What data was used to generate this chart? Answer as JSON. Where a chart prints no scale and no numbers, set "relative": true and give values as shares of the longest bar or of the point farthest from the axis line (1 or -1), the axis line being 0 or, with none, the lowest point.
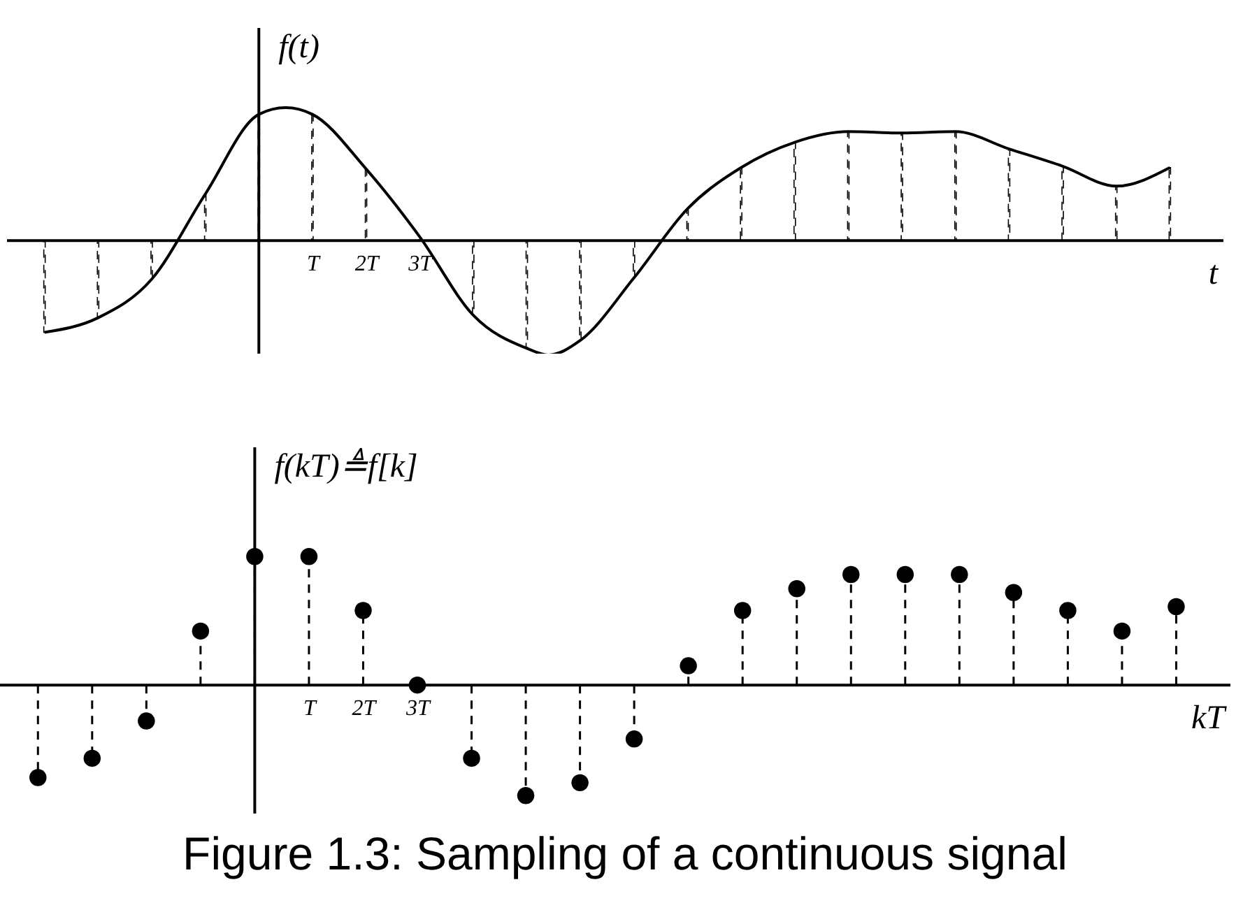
{
  "chart_data": [
    {
      "type": "line",
      "xlabel": "t",
      "ylabel": "f(t)",
      "relative": true,
      "xlim": [
        -4.7,
        18
      ],
      "xticks": [
        {
          "value": 1,
          "label": "T"
        },
        {
          "value": 2,
          "label": "2T"
        },
        {
          "value": 3,
          "label": "3T"
        }
      ],
      "series": [
        {
          "color": "#000000",
          "line_style": "solid",
          "x": [
            -4,
            -3,
            -2,
            -1,
            0,
            0.5,
            1,
            2,
            3,
            4,
            5,
            5.4,
            6,
            7,
            8,
            9,
            10,
            11,
            12,
            13,
            14,
            15,
            16,
            17
          ],
          "values": [
            -0.69,
            -0.58,
            -0.29,
            0.35,
            0.95,
            1,
            0.95,
            0.54,
            0.03,
            -0.56,
            -0.81,
            -0.86,
            -0.75,
            -0.28,
            0.24,
            0.55,
            0.74,
            0.82,
            0.81,
            0.82,
            0.69,
            0.56,
            0.41,
            0.55
          ]
        },
        {
          "type": "bar",
          "color": "#000000",
          "line_style": "dashed",
          "x": [
            -4,
            -3,
            -2,
            -1,
            0,
            1,
            2,
            3,
            4,
            5,
            6,
            7,
            8,
            9,
            10,
            11,
            12,
            13,
            14,
            15,
            16,
            17
          ],
          "values": [
            -0.69,
            -0.58,
            -0.29,
            0.35,
            0.95,
            0.95,
            0.54,
            0.03,
            -0.56,
            -0.81,
            -0.75,
            -0.28,
            0.24,
            0.55,
            0.74,
            0.82,
            0.81,
            0.82,
            0.69,
            0.56,
            0.41,
            0.55
          ]
        }
      ]
    },
    {
      "type": "lollipop",
      "xlabel": "kT",
      "ylabel": "f(kT)≜f[k]",
      "relative": true,
      "xlim": [
        -4.7,
        18
      ],
      "xticks": [
        {
          "value": 1,
          "label": "T"
        },
        {
          "value": 2,
          "label": "2T"
        },
        {
          "value": 3,
          "label": "3T"
        }
      ],
      "marker": "circle",
      "annotations": [
        "Figure 1.3: Sampling of a continuous signal"
      ],
      "series": [
        {
          "color": "#000000",
          "line_style": "dashed",
          "x": [
            -4,
            -3,
            -2,
            -1,
            0,
            1,
            2,
            3,
            4,
            5,
            6,
            7,
            8,
            9,
            10,
            11,
            12,
            13,
            14,
            15,
            16,
            17
          ],
          "values": [
            -0.72,
            -0.57,
            -0.28,
            0.42,
            1,
            1,
            0.58,
            0,
            -0.57,
            -0.86,
            -0.76,
            -0.42,
            0.15,
            0.58,
            0.75,
            0.86,
            0.86,
            0.86,
            0.72,
            0.58,
            0.42,
            0.61
          ]
        }
      ]
    }
  ]
}
